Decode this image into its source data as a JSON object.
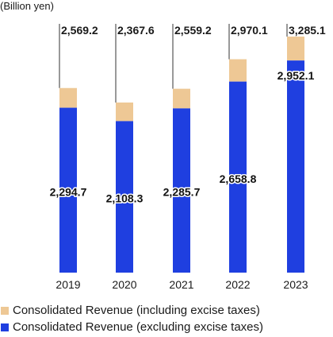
{
  "chart_data": {
    "type": "bar",
    "stacked": true,
    "unit_label": "(Billion yen)",
    "categories": [
      "2019",
      "2020",
      "2021",
      "2022",
      "2023"
    ],
    "totals": [
      "2,569.2",
      "2,367.6",
      "2,559.2",
      "2,970.1",
      "3,285.1"
    ],
    "total_values": [
      2569.2,
      2367.6,
      2559.2,
      2970.1,
      3285.1
    ],
    "series": [
      {
        "name": "Consolidated Revenue (excluding excise taxes)",
        "values": [
          2294.7,
          2108.3,
          2285.7,
          2658.8,
          2952.1
        ],
        "labels": [
          "2,294.7",
          "2,108.3",
          "2,285.7",
          "2,658.8",
          "2,952.1"
        ],
        "color": "#1f3fe0"
      },
      {
        "name": "Consolidated Revenue (including excise taxes)",
        "values": [
          274.5,
          259.3,
          273.5,
          311.3,
          333.0
        ],
        "color": "#eec895"
      }
    ],
    "legend": [
      {
        "label": "Consolidated Revenue (including excise taxes)",
        "color": "#eec895"
      },
      {
        "label": "Consolidated Revenue (excluding excise taxes)",
        "color": "#1f3fe0"
      }
    ],
    "legend_placement": "bottom-left",
    "grid": false,
    "ylim": [
      0,
      3600
    ]
  }
}
